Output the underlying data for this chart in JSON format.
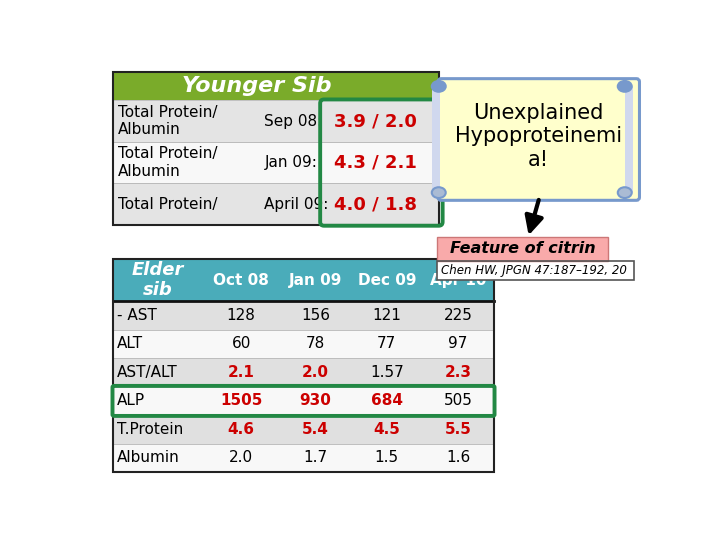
{
  "younger_sib_header": "Younger Sib",
  "younger_sib_bg": "#7aab2a",
  "younger_sib_rows": [
    {
      "label": "Total Protein/\nAlbumin",
      "date": "Sep 08:",
      "value": "3.9 / 2.0"
    },
    {
      "label": "Total Protein/\nAlbumin",
      "date": "Jan 09:",
      "value": "4.3 / 2.1"
    },
    {
      "label": "Total Protein/",
      "date": "April 09:",
      "value": "4.0 / 1.8"
    }
  ],
  "elder_sib_header": [
    "Elder\nsib",
    "Oct 08",
    "Jan 09",
    "Dec 09",
    "Apr 10"
  ],
  "elder_sib_header_bg": "#4aacba",
  "elder_sib_rows": [
    {
      "label": "- AST",
      "values": [
        "128",
        "156",
        "121",
        "225"
      ],
      "value_colors": [
        "black",
        "black",
        "black",
        "black"
      ],
      "row_bg": "#e0e0e0"
    },
    {
      "label": "ALT",
      "values": [
        "60",
        "78",
        "77",
        "97"
      ],
      "value_colors": [
        "black",
        "black",
        "black",
        "black"
      ],
      "row_bg": "#f8f8f8"
    },
    {
      "label": "AST/ALT",
      "values": [
        "2.1",
        "2.0",
        "1.57",
        "2.3"
      ],
      "value_colors": [
        "#cc0000",
        "#cc0000",
        "black",
        "#cc0000"
      ],
      "row_bg": "#e0e0e0"
    },
    {
      "label": "ALP",
      "values": [
        "1505",
        "930",
        "684",
        "505"
      ],
      "value_colors": [
        "#cc0000",
        "#cc0000",
        "#cc0000",
        "black"
      ],
      "row_bg": "#f8f8f8",
      "highlight": true
    },
    {
      "label": "T.Protein",
      "values": [
        "4.6",
        "5.4",
        "4.5",
        "5.5"
      ],
      "value_colors": [
        "#cc0000",
        "#cc0000",
        "#cc0000",
        "#cc0000"
      ],
      "row_bg": "#e0e0e0"
    },
    {
      "label": "Albumin",
      "values": [
        "2.0",
        "1.7",
        "1.5",
        "1.6"
      ],
      "value_colors": [
        "black",
        "black",
        "black",
        "black"
      ],
      "row_bg": "#f8f8f8"
    }
  ],
  "callout_text": "Unexplained\nHypoproteinemi\na!",
  "callout_bg": "#ffffcc",
  "callout_border": "#7799cc",
  "feature_text": "Feature of citrin",
  "feature_bg": "#f9aaaa",
  "citation_text": "Chen HW, JPGN 47:187–192, 20",
  "citation_bg": "#ffffff",
  "green_box_color": "#228844",
  "fig_bg": "#ffffff"
}
